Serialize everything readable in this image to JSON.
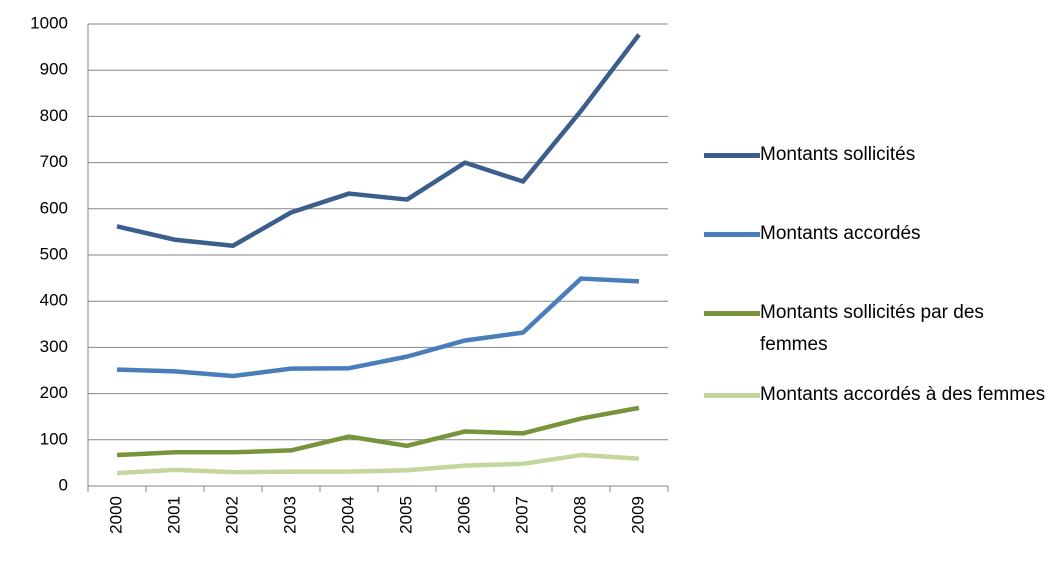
{
  "chart_data": {
    "type": "line",
    "categories": [
      "2000",
      "2001",
      "2002",
      "2003",
      "2004",
      "2005",
      "2006",
      "2007",
      "2008",
      "2009"
    ],
    "series": [
      {
        "name": "Montants sollicités",
        "color": "#3b5e8c",
        "values": [
          562,
          533,
          520,
          592,
          633,
          620,
          700,
          659,
          812,
          977
        ]
      },
      {
        "name": "Montants accordés",
        "color": "#4a7ebb",
        "values": [
          252,
          248,
          238,
          254,
          255,
          280,
          315,
          332,
          449,
          443
        ]
      },
      {
        "name": "Montants sollicités par des femmes",
        "color": "#77933c",
        "values": [
          67,
          73,
          73,
          77,
          107,
          87,
          118,
          114,
          146,
          169
        ]
      },
      {
        "name": "Montants accordés à des femmes",
        "color": "#c3d69b",
        "values": [
          28,
          35,
          30,
          31,
          31,
          34,
          44,
          48,
          67,
          59
        ]
      }
    ],
    "ylim": [
      0,
      1000
    ],
    "yticks": [
      0,
      100,
      200,
      300,
      400,
      500,
      600,
      700,
      800,
      900,
      1000
    ],
    "grid": true,
    "legend": "right"
  }
}
